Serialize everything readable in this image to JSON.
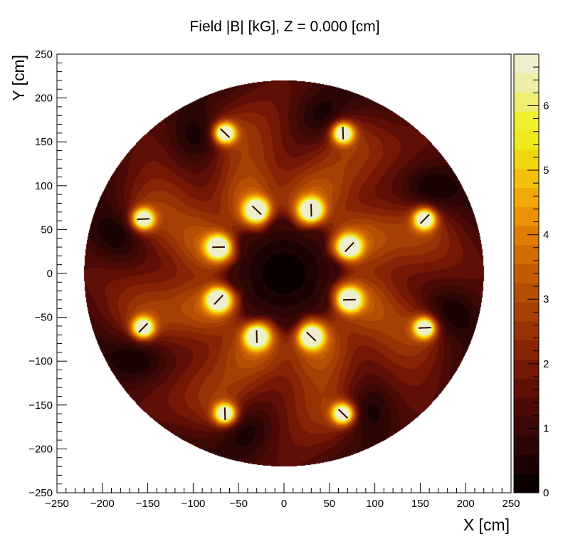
{
  "chart_data": {
    "type": "heatmap",
    "title": "Field |B| [kG],  Z = 0.000  [cm]",
    "xlabel": "X  [cm]",
    "ylabel": "Y  [cm]",
    "xlim": [
      -250,
      250
    ],
    "ylim": [
      -250,
      250
    ],
    "x_ticks": [
      "−250",
      "−200",
      "−150",
      "−100",
      "−50",
      "0",
      "50",
      "100",
      "150",
      "200",
      "250"
    ],
    "y_ticks": [
      "−250",
      "−200",
      "−150",
      "−100",
      "−50",
      "0",
      "50",
      "100",
      "150",
      "200",
      "250"
    ],
    "colorbar": {
      "range": [
        0,
        6.8
      ],
      "ticks": [
        "0",
        "1",
        "2",
        "3",
        "4",
        "5",
        "6"
      ],
      "colors": [
        "#0a0000",
        "#1c0303",
        "#2c0605",
        "#3c0806",
        "#4c0a06",
        "#5f0f06",
        "#741805",
        "#862405",
        "#963204",
        "#a63f04",
        "#b54d04",
        "#c45b03",
        "#d36b04",
        "#e17b04",
        "#ea9204",
        "#f0a907",
        "#f2c00b",
        "#f0d60e",
        "#eeea1d",
        "#eef02e",
        "#eeee70",
        "#eeeea6",
        "#eeeecc"
      ]
    },
    "field": {
      "region_radius": 220,
      "inner_radius": 55,
      "symmetry": 8,
      "inner_coils": [
        {
          "x": 30,
          "y": 72,
          "value": 6.8
        },
        {
          "x": 72,
          "y": 30,
          "value": 6.8
        },
        {
          "x": 72,
          "y": -30,
          "value": 6.8
        },
        {
          "x": 30,
          "y": -72,
          "value": 6.8
        },
        {
          "x": -30,
          "y": -72,
          "value": 6.8
        },
        {
          "x": -72,
          "y": -30,
          "value": 6.8
        },
        {
          "x": -72,
          "y": 30,
          "value": 6.8
        },
        {
          "x": -30,
          "y": 72,
          "value": 6.8
        }
      ],
      "outer_coils": [
        {
          "x": 65,
          "y": 160,
          "value": 6.8
        },
        {
          "x": 155,
          "y": 62,
          "value": 6.8
        },
        {
          "x": 155,
          "y": -62,
          "value": 6.8
        },
        {
          "x": 65,
          "y": -160,
          "value": 6.8
        },
        {
          "x": -65,
          "y": -160,
          "value": 6.8
        },
        {
          "x": -155,
          "y": -62,
          "value": 6.8
        },
        {
          "x": -155,
          "y": 62,
          "value": 6.8
        },
        {
          "x": -65,
          "y": 160,
          "value": 6.8
        }
      ],
      "minima": [
        {
          "x": 45,
          "y": 175,
          "value": 0.6
        },
        {
          "x": 160,
          "y": 92,
          "value": 0.6
        },
        {
          "x": 178,
          "y": -45,
          "value": 0.6
        },
        {
          "x": 88,
          "y": -155,
          "value": 0.6
        },
        {
          "x": -45,
          "y": -175,
          "value": 0.6
        },
        {
          "x": -160,
          "y": -92,
          "value": 0.6
        },
        {
          "x": -178,
          "y": 45,
          "value": 0.6
        },
        {
          "x": -90,
          "y": 155,
          "value": 0.6
        }
      ]
    }
  }
}
